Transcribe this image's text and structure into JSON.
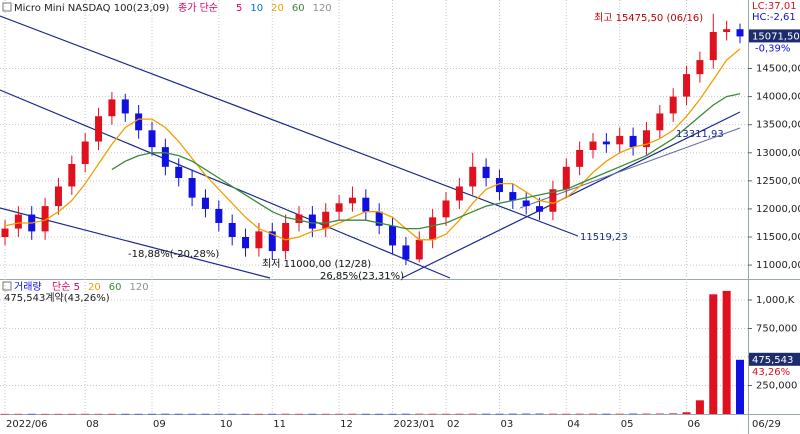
{
  "chart_data": [
    {
      "type": "candlestick",
      "title": "Micro Mini NASDAQ 100(23,09)",
      "legend_title": "종가 단순",
      "moving_averages": [
        {
          "name": "5",
          "color": "#d4006a"
        },
        {
          "name": "10",
          "color": "#0070c0"
        },
        {
          "name": "20",
          "color": "#f0a000",
          "values": [
            11700,
            11750,
            11750,
            11800,
            11950,
            12150,
            12450,
            12800,
            13150,
            13450,
            13600,
            13600,
            13450,
            13200,
            12900,
            12600,
            12350,
            12100,
            11850,
            11650,
            11550,
            11450,
            11500,
            11600,
            11650,
            11750,
            11850,
            11950,
            11950,
            11850,
            11650,
            11450,
            11450,
            11550,
            11800,
            12100,
            12350,
            12450,
            12450,
            12300,
            12150,
            12100,
            12200,
            12400,
            12650,
            12850,
            13000,
            13100,
            13150,
            13250,
            13400,
            13650,
            13950,
            14300,
            14650,
            14850
          ]
        },
        {
          "name": "60",
          "color": "#3a8a3a",
          "values": [
            null,
            null,
            null,
            null,
            null,
            null,
            null,
            null,
            12700,
            12850,
            12950,
            13000,
            13000,
            12950,
            12850,
            12700,
            12550,
            12400,
            12250,
            12100,
            11950,
            11850,
            11800,
            11750,
            11750,
            11800,
            11800,
            11800,
            11750,
            11700,
            11650,
            11650,
            11700,
            11750,
            11850,
            11950,
            12050,
            12100,
            12150,
            12200,
            12250,
            12300,
            12350,
            12450,
            12550,
            12650,
            12750,
            12850,
            12950,
            13100,
            13250,
            13450,
            13650,
            13850,
            14000,
            14050
          ]
        },
        {
          "name": "120",
          "color": "#909090"
        }
      ],
      "categories": [
        "2022/06",
        null,
        null,
        null,
        null,
        null,
        "08",
        null,
        null,
        null,
        null,
        "09",
        null,
        null,
        null,
        null,
        "10",
        null,
        null,
        null,
        "11",
        null,
        null,
        null,
        null,
        "12",
        null,
        null,
        null,
        "2023/01",
        null,
        null,
        null,
        "02",
        null,
        null,
        null,
        "03",
        null,
        null,
        null,
        null,
        "04",
        null,
        null,
        null,
        "05",
        null,
        null,
        null,
        null,
        "06",
        null,
        null,
        null,
        null
      ],
      "x_end_label": "06/29",
      "open": [
        11500,
        11650,
        11900,
        11600,
        12050,
        12400,
        12800,
        13200,
        13650,
        13950,
        13700,
        13400,
        13100,
        12750,
        12550,
        12200,
        12000,
        11750,
        11500,
        11300,
        11600,
        11250,
        11750,
        11900,
        11650,
        11950,
        12100,
        12200,
        11950,
        11700,
        11350,
        11100,
        11450,
        11850,
        12150,
        12400,
        12750,
        12550,
        12300,
        12150,
        12050,
        11950,
        12350,
        12750,
        13050,
        13200,
        13150,
        13300,
        13100,
        13400,
        13700,
        14000,
        14400,
        14650,
        15150,
        15200
      ],
      "high": [
        11800,
        12050,
        12050,
        12200,
        12550,
        12950,
        13350,
        13800,
        14080,
        14050,
        13850,
        13550,
        13250,
        12900,
        12700,
        12350,
        12150,
        11900,
        11650,
        11750,
        11750,
        11900,
        12050,
        12050,
        12100,
        12250,
        12400,
        12350,
        12100,
        11850,
        11500,
        11600,
        12000,
        12300,
        12550,
        13000,
        12900,
        12700,
        12450,
        12300,
        12200,
        12500,
        12900,
        13200,
        13350,
        13350,
        13450,
        13450,
        13550,
        13850,
        14150,
        14550,
        14800,
        15475.5,
        15350,
        15300
      ],
      "low": [
        11350,
        11500,
        11450,
        11450,
        11900,
        12250,
        12650,
        13050,
        13500,
        13550,
        13250,
        12950,
        12600,
        12400,
        12050,
        11850,
        11600,
        11350,
        11150,
        11150,
        11100,
        11100,
        11600,
        11500,
        11500,
        11800,
        11950,
        11800,
        11550,
        11200,
        11000,
        11050,
        11300,
        11700,
        12000,
        12250,
        12400,
        12150,
        12000,
        11900,
        11800,
        11800,
        12200,
        12600,
        12900,
        13000,
        13000,
        12950,
        12950,
        13250,
        13550,
        13850,
        14250,
        14500,
        15000,
        14950
      ],
      "close": [
        11650,
        11900,
        11600,
        12050,
        12400,
        12800,
        13200,
        13650,
        13950,
        13700,
        13400,
        13100,
        12750,
        12550,
        12200,
        12000,
        11750,
        11500,
        11300,
        11600,
        11250,
        11750,
        11900,
        11650,
        11950,
        12100,
        12200,
        11950,
        11700,
        11350,
        11100,
        11450,
        11850,
        12150,
        12400,
        12750,
        12550,
        12300,
        12150,
        12050,
        11950,
        12350,
        12750,
        13050,
        13200,
        13150,
        13300,
        13100,
        13400,
        13700,
        14000,
        14400,
        14650,
        15150,
        15200,
        15071.5
      ],
      "up_color": "#e0101e",
      "down_color": "#1010e0",
      "ylim": [
        10770,
        15720
      ],
      "yticks": [
        {
          "value": 11000,
          "label": "11000,00"
        },
        {
          "value": 11500,
          "label": "11500,00"
        },
        {
          "value": 12000,
          "label": "12000,00"
        },
        {
          "value": 12500,
          "label": "12500,00"
        },
        {
          "value": 13000,
          "label": "13000,00"
        },
        {
          "value": 13500,
          "label": "13500,00"
        },
        {
          "value": 14000,
          "label": "14000,00"
        },
        {
          "value": 14500,
          "label": "14500,00"
        }
      ],
      "grid": true,
      "current_price": {
        "value": 15071.5,
        "label": "15071,50"
      },
      "change_label": "-0,39%",
      "lc_label": "LC:37,01",
      "hc_label": "HC:-2,61",
      "annotations": {
        "high": "최고 15475,50 (06/16)",
        "low": "최저 11000,00 (12/28)",
        "drop": "-18,88%(-20,28%)",
        "rise": "26,85%(23,31%)",
        "line1": "11519,23",
        "line2": "13311,93"
      }
    },
    {
      "type": "bar",
      "title": "거래량",
      "legend_title": "단순 5",
      "legend_periods": [
        {
          "name": "20",
          "color": "#f0a000"
        },
        {
          "name": "60",
          "color": "#3a8a3a"
        },
        {
          "name": "120",
          "color": "#909090"
        }
      ],
      "subtitle": "475,543계약(43,26%)",
      "values": [
        1200,
        1500,
        1300,
        1100,
        1400,
        1600,
        1800,
        1500,
        1700,
        1400,
        1300,
        1500,
        2100,
        1800,
        1600,
        1700,
        1900,
        1500,
        1400,
        1600,
        1800,
        2000,
        1700,
        1500,
        1600,
        1900,
        2200,
        1800,
        1600,
        1500,
        1900,
        2400,
        2100,
        1800,
        2300,
        2600,
        2200,
        1900,
        2400,
        2800,
        3100,
        2600,
        2200,
        2500,
        2700,
        2300,
        2600,
        2900,
        3300,
        3800,
        5200,
        15000,
        120000,
        1050000,
        1080000,
        475543
      ],
      "ylim": [
        0,
        1158000
      ],
      "yticks": [
        {
          "value": 250000,
          "label": "250,000"
        },
        {
          "value": 500000,
          "label": "500,000"
        },
        {
          "value": 750000,
          "label": "750,000"
        },
        {
          "value": 1000000,
          "label": "1,000,K"
        }
      ],
      "current_volume": {
        "value": 475543,
        "label": "475,543"
      },
      "change_label": "43,26%"
    }
  ]
}
